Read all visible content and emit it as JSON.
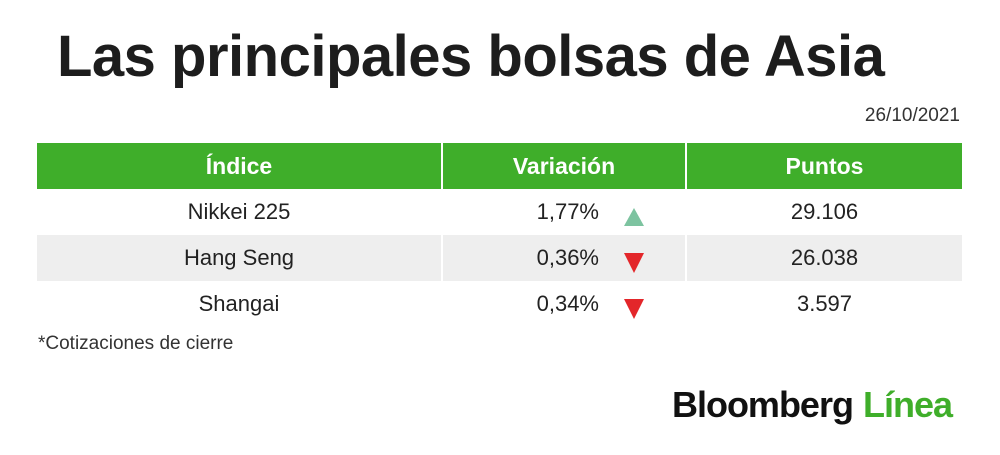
{
  "title": "Las principales bolsas de Asia",
  "date": "26/10/2021",
  "table": {
    "headers": [
      "Índice",
      "Variación",
      "Puntos"
    ],
    "rows": [
      {
        "index": "Nikkei 225",
        "variation": "1,77%",
        "direction": "up",
        "points": "29.106"
      },
      {
        "index": "Hang Seng",
        "variation": "0,36%",
        "direction": "down",
        "points": "26.038"
      },
      {
        "index": "Shangai",
        "variation": "0,34%",
        "direction": "down",
        "points": "3.597"
      }
    ]
  },
  "note": "*Cotizaciones de cierre",
  "logo": {
    "part1": "Bloomberg",
    "part2": "Línea"
  },
  "colors": {
    "header": "#3fae2a",
    "up": "#7dc3a0",
    "down": "#e3262a",
    "alt_row": "#eeeeee"
  },
  "icons": {
    "up": "triangle-up-icon",
    "down": "triangle-down-icon"
  }
}
